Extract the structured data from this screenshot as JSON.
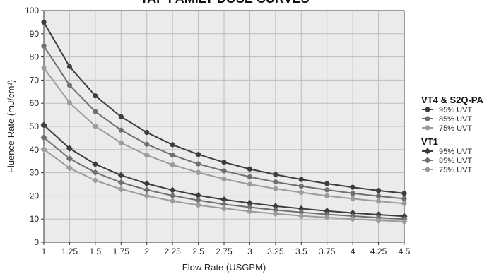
{
  "chart_data": {
    "type": "line",
    "title": "TAP FAMILY DOSE CURVES",
    "xlabel": "Flow Rate (USGPM)",
    "ylabel": "Fluence Rate (mJ/cm²)",
    "xlim": [
      1,
      4.5
    ],
    "ylim": [
      0,
      100
    ],
    "x": [
      1,
      1.25,
      1.5,
      1.75,
      2,
      2.25,
      2.5,
      2.75,
      3,
      3.25,
      3.5,
      3.75,
      4,
      4.25,
      4.5
    ],
    "x_tick_labels": [
      "1",
      "1.25",
      "1.5",
      "1.75",
      "2",
      "2.25",
      "2.5",
      "2.75",
      "3",
      "3.25",
      "3.5",
      "3.75",
      "4",
      "4.25",
      "4.5"
    ],
    "y_tick_labels": [
      "0",
      "10",
      "20",
      "30",
      "40",
      "50",
      "60",
      "70",
      "80",
      "90",
      "100"
    ],
    "grid": true,
    "legend_placement": "right",
    "legend_groups": [
      {
        "title": "VT4 & S2Q-PA",
        "marker": "circle",
        "series": [
          {
            "name": "95% UVT",
            "color": "#3d3d3d",
            "values": [
              95,
              75.8,
              63.2,
              54.2,
              47.4,
              42.1,
              37.9,
              34.5,
              31.6,
              29.2,
              27.1,
              25.3,
              23.7,
              22.3,
              21.1
            ]
          },
          {
            "name": "85% UVT",
            "color": "#6f6f6f",
            "values": [
              84.7,
              67.8,
              56.4,
              48.4,
              42.3,
              37.6,
              33.8,
              30.8,
              28.2,
              26.0,
              24.2,
              22.6,
              21.1,
              19.9,
              18.8
            ]
          },
          {
            "name": "75% UVT",
            "color": "#9c9c9c",
            "values": [
              75.3,
              60.2,
              50.1,
              42.9,
              37.6,
              33.4,
              30.1,
              27.3,
              25.0,
              23.1,
              21.5,
              20.0,
              18.8,
              17.7,
              16.7
            ]
          }
        ]
      },
      {
        "title": "VT1",
        "marker": "diamond",
        "series": [
          {
            "name": "95% UVT",
            "color": "#3d3d3d",
            "values": [
              50.6,
              40.5,
              33.7,
              28.9,
              25.3,
              22.5,
              20.2,
              18.4,
              16.9,
              15.6,
              14.5,
              13.5,
              12.6,
              11.9,
              11.2
            ]
          },
          {
            "name": "85% UVT",
            "color": "#6f6f6f",
            "values": [
              45.2,
              36.1,
              30.1,
              25.8,
              22.6,
              20.1,
              18.1,
              16.4,
              15.1,
              13.9,
              12.9,
              12.0,
              11.3,
              10.6,
              10.0
            ]
          },
          {
            "name": "75% UVT",
            "color": "#9c9c9c",
            "values": [
              40.1,
              32.0,
              26.7,
              22.9,
              20.0,
              17.8,
              16.0,
              14.6,
              13.3,
              12.3,
              11.4,
              10.7,
              10.0,
              9.4,
              8.9
            ]
          }
        ]
      }
    ]
  }
}
